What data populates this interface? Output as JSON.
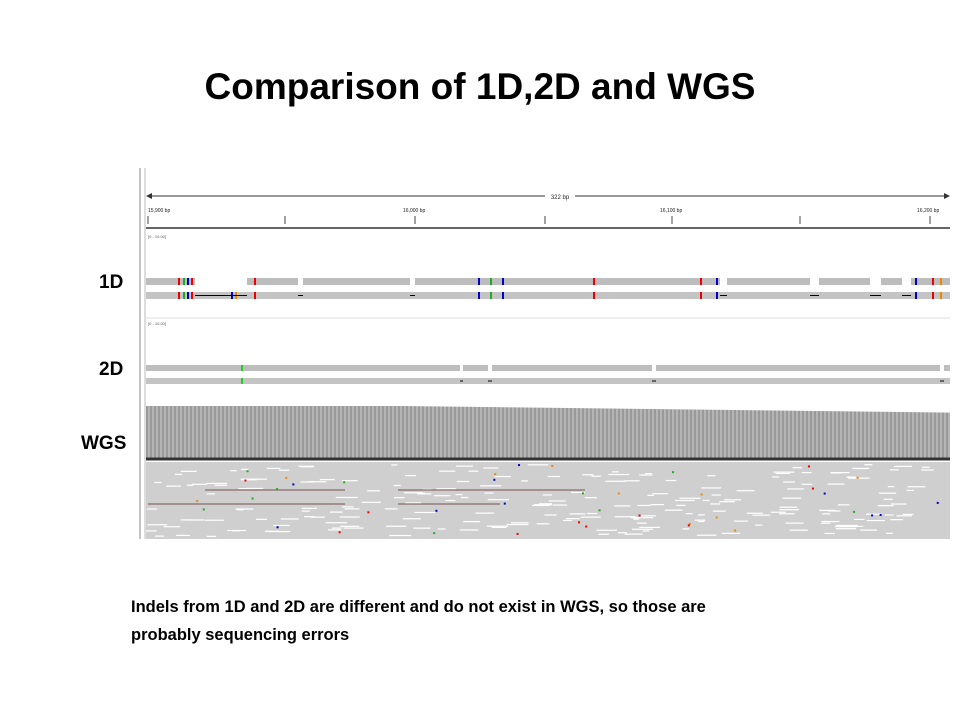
{
  "title": "Comparison of 1D,2D and WGS",
  "tracks": [
    {
      "label": "1D"
    },
    {
      "label": "2D"
    },
    {
      "label": "WGS"
    }
  ],
  "ruler": {
    "span": "322 bp",
    "positions": [
      "15,900 bp",
      "16,000 bp",
      "16,100 bp",
      "16,200 bp"
    ]
  },
  "range_label": "[0 - 10.00]",
  "caption": [
    "Indels from 1D and 2D are different and do not exist in WGS, so those are",
    "probably sequencing errors"
  ]
}
